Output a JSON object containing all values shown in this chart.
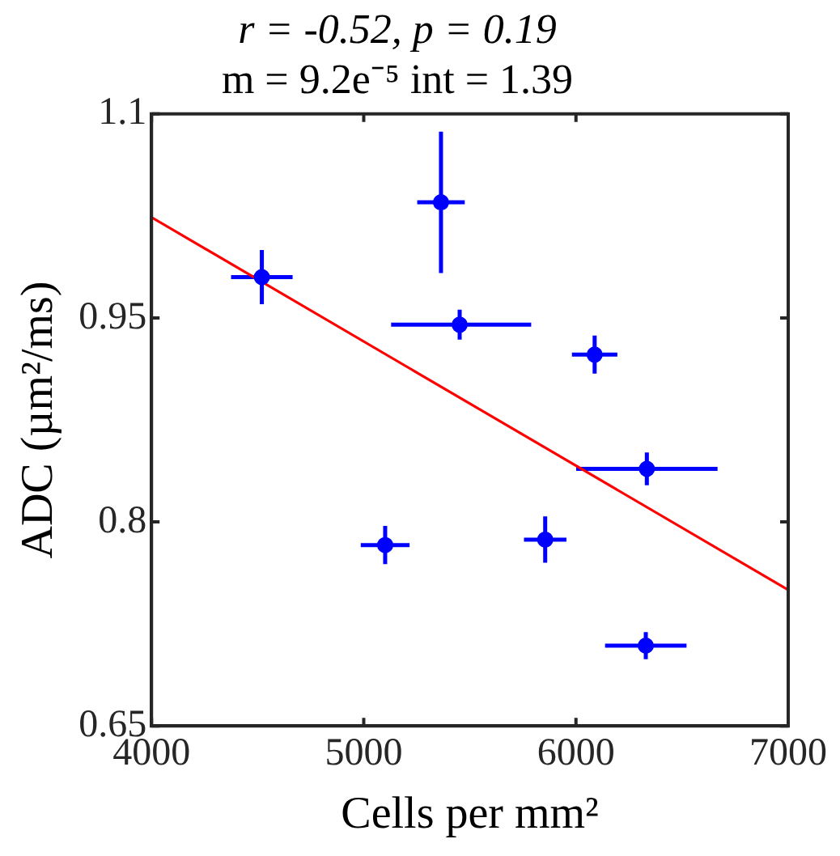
{
  "chart_data": {
    "type": "scatter",
    "title": "r = -0.52, p = 0.19",
    "subtitle": "m = 9.2e⁻⁵ int = 1.39",
    "xlabel": "Cells per mm²",
    "ylabel": "ADC (µm²/ms)",
    "xlim": [
      4000,
      7000
    ],
    "xticks": [
      4000,
      5000,
      6000,
      7000
    ],
    "ylim": [
      0.65,
      1.1
    ],
    "yticks": [
      0.65,
      0.8,
      0.95,
      1.1
    ],
    "grid": false,
    "legend": false,
    "marker": "circle",
    "series": [
      {
        "color": "#0000ff",
        "x": [
          4520,
          5101,
          5364,
          5452,
          6088,
          6334,
          5855,
          6329
        ],
        "values": [
          0.98,
          0.783,
          1.035,
          0.945,
          0.923,
          0.839,
          0.787,
          0.709
        ],
        "errors": [
          0.02,
          0.014,
          [
            0.983,
            1.087
          ],
          0.011,
          0.014,
          0.012,
          0.017,
          0.01
        ],
        "xerrors": [
          145,
          115,
          112,
          [
            5129,
            5789
          ],
          107,
          333,
          100,
          192
        ]
      },
      {
        "type": "line",
        "color": "#ff0000",
        "x": [
          4000,
          7000
        ],
        "values": [
          1.024,
          0.75
        ],
        "marker": "none"
      }
    ]
  }
}
